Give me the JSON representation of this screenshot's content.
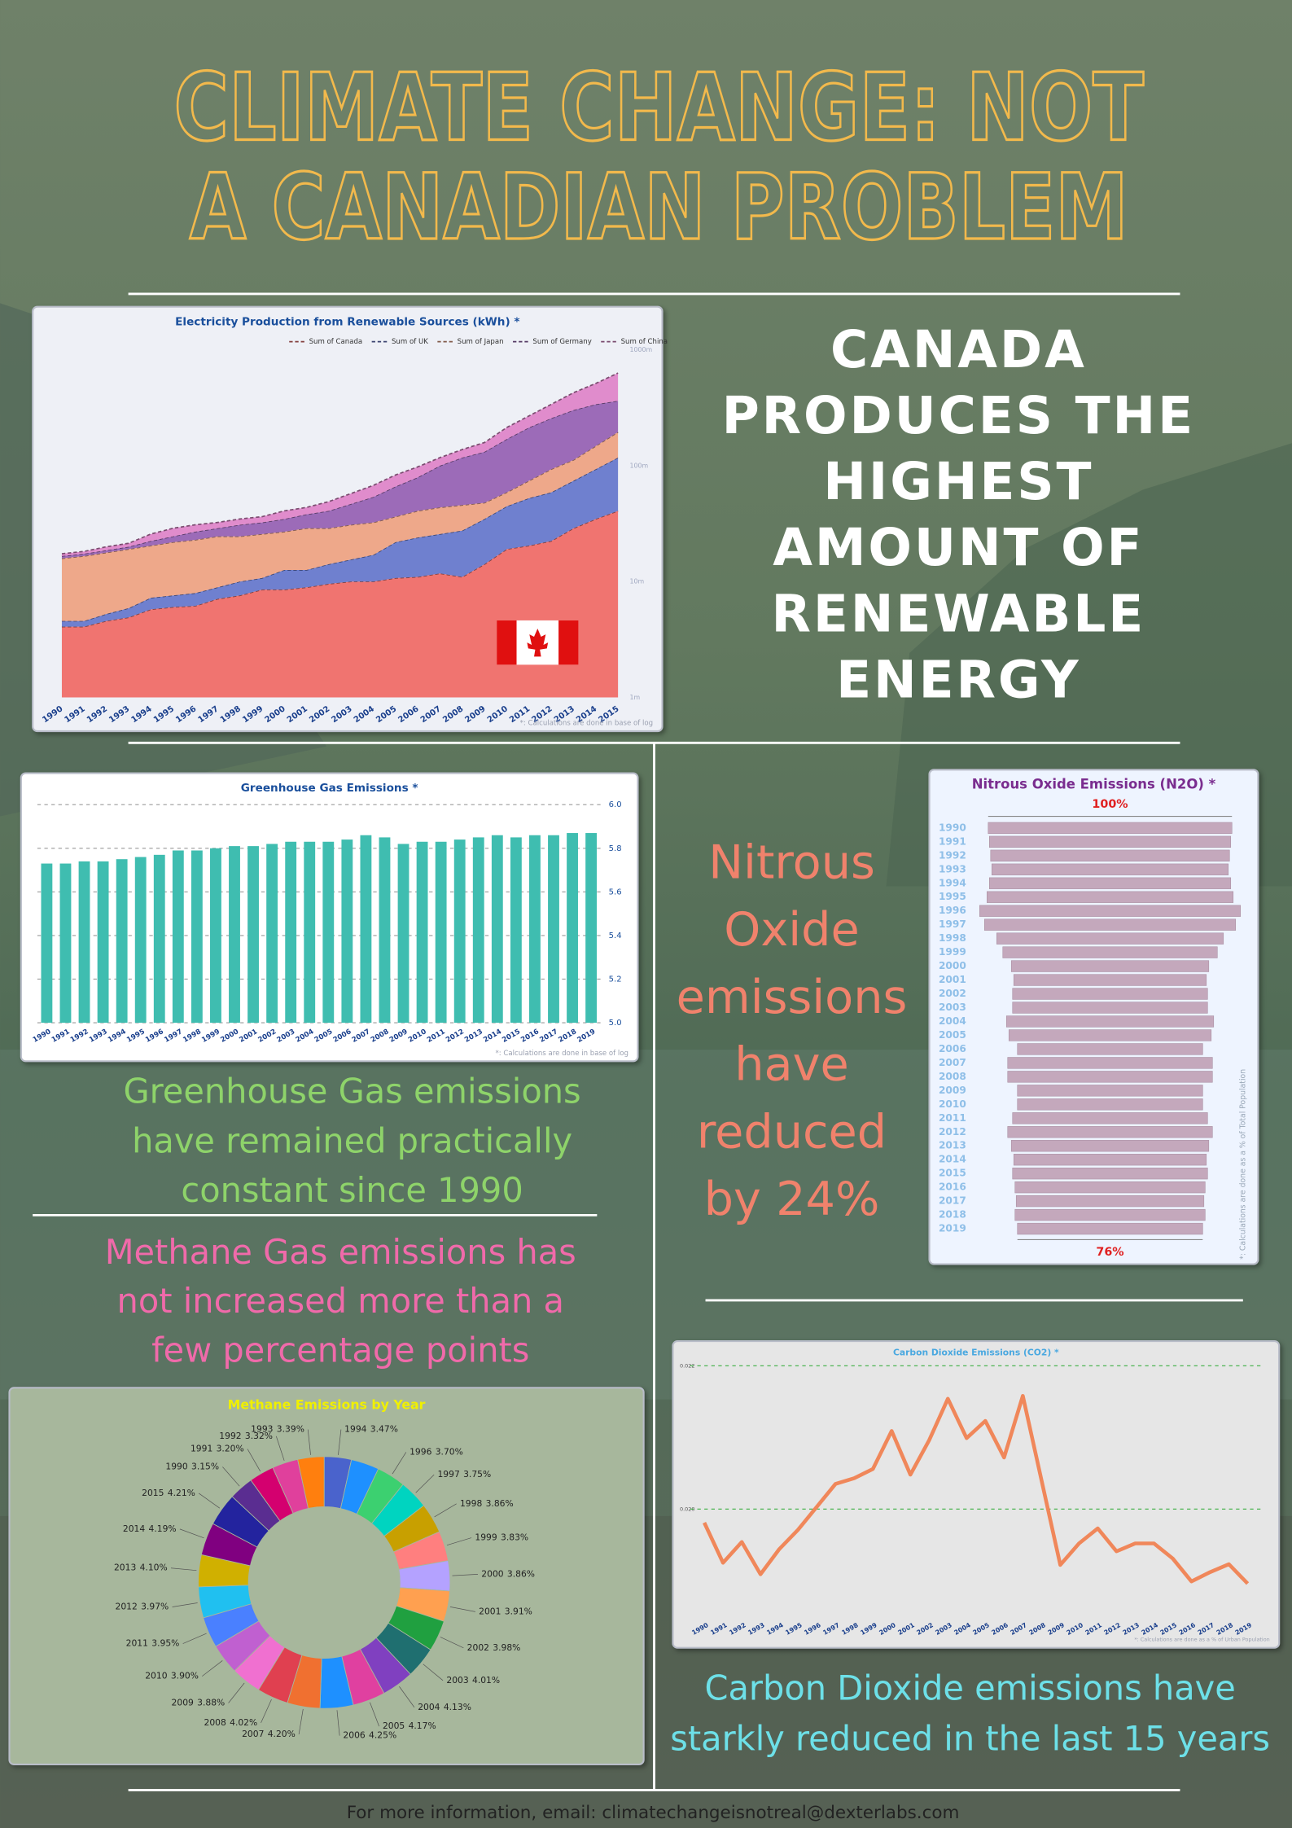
{
  "title_lines": [
    "CLIMATE CHANGE: NOT",
    "A CANADIAN PROBLEM"
  ],
  "headline_lines": [
    "CANADA",
    "PRODUCES THE",
    "HIGHEST",
    "AMOUNT OF",
    "RENEWABLE",
    "ENERGY"
  ],
  "captions": {
    "greenhouse": [
      "Greenhouse Gas emissions",
      "have remained practically",
      "constant since 1990"
    ],
    "methane": [
      "Methane Gas emissions has",
      "not increased more than  a",
      "few percentage points"
    ],
    "nitrous": [
      "Nitrous",
      "Oxide",
      "emissions",
      "have",
      "reduced",
      "by 24%"
    ],
    "co2": [
      "Carbon Dioxide emissions have",
      "starkly reduced in the last 15 years"
    ]
  },
  "footer": "For more information, email: climatechangeisnotreal@dexterlabs.com",
  "chart_data": [
    {
      "type": "area",
      "stacked": true,
      "title": "Electricity Production from Renewable Sources (kWh) *",
      "x": [
        1990,
        1991,
        1992,
        1993,
        1994,
        1995,
        1996,
        1997,
        1998,
        1999,
        2000,
        2001,
        2002,
        2003,
        2004,
        2005,
        2006,
        2007,
        2008,
        2009,
        2010,
        2011,
        2012,
        2013,
        2014,
        2015
      ],
      "series": [
        {
          "name": "Sum of Canada",
          "color": "#f07470",
          "values": [
            0.61,
            0.61,
            0.66,
            0.69,
            0.76,
            0.78,
            0.79,
            0.85,
            0.88,
            0.93,
            0.93,
            0.95,
            0.98,
            1.0,
            1.0,
            1.03,
            1.04,
            1.07,
            1.04,
            1.15,
            1.28,
            1.31,
            1.35,
            1.46,
            1.54,
            1.61
          ]
        },
        {
          "name": "Sum of UK",
          "color": "#6f80cf",
          "values": [
            0.05,
            0.05,
            0.06,
            0.08,
            0.1,
            0.1,
            0.11,
            0.1,
            0.12,
            0.1,
            0.17,
            0.15,
            0.17,
            0.19,
            0.23,
            0.31,
            0.34,
            0.34,
            0.4,
            0.39,
            0.37,
            0.41,
            0.42,
            0.41,
            0.43,
            0.46
          ]
        },
        {
          "name": "Sum of Japan",
          "color": "#eea88a",
          "values": [
            0.54,
            0.56,
            0.53,
            0.51,
            0.45,
            0.46,
            0.46,
            0.44,
            0.39,
            0.38,
            0.33,
            0.36,
            0.31,
            0.3,
            0.28,
            0.22,
            0.23,
            0.23,
            0.22,
            0.14,
            0.12,
            0.15,
            0.2,
            0.18,
            0.2,
            0.22
          ]
        },
        {
          "name": "Sum of Germany",
          "color": "#9c6bb8",
          "values": [
            0.02,
            0.02,
            0.02,
            0.02,
            0.04,
            0.05,
            0.07,
            0.07,
            0.1,
            0.1,
            0.11,
            0.12,
            0.15,
            0.18,
            0.22,
            0.26,
            0.29,
            0.36,
            0.41,
            0.44,
            0.46,
            0.46,
            0.44,
            0.43,
            0.36,
            0.27
          ]
        },
        {
          "name": "Sum of China",
          "color": "#e08ccc",
          "values": [
            0.02,
            0.02,
            0.03,
            0.03,
            0.06,
            0.07,
            0.06,
            0.05,
            0.05,
            0.05,
            0.07,
            0.06,
            0.08,
            0.09,
            0.1,
            0.1,
            0.09,
            0.07,
            0.07,
            0.08,
            0.1,
            0.1,
            0.12,
            0.15,
            0.18,
            0.24
          ]
        }
      ],
      "ylim": [
        0,
        3
      ],
      "yticks": [
        {
          "value": 0,
          "label": "1m"
        },
        {
          "value": 1,
          "label": "10m"
        },
        {
          "value": 2,
          "label": "100m"
        },
        {
          "value": 3,
          "label": "1000m"
        }
      ],
      "grid": false,
      "legend": "top-right",
      "note": "*: Calculations are done in base of log"
    },
    {
      "type": "bar",
      "title": "Greenhouse Gas Emissions *",
      "categories": [
        1990,
        1991,
        1992,
        1993,
        1994,
        1995,
        1996,
        1997,
        1998,
        1999,
        2000,
        2001,
        2002,
        2003,
        2004,
        2005,
        2006,
        2007,
        2008,
        2009,
        2010,
        2011,
        2012,
        2013,
        2014,
        2015,
        2016,
        2017,
        2018,
        2019
      ],
      "values": [
        5.73,
        5.73,
        5.74,
        5.74,
        5.75,
        5.76,
        5.77,
        5.79,
        5.79,
        5.8,
        5.81,
        5.81,
        5.82,
        5.83,
        5.83,
        5.83,
        5.84,
        5.86,
        5.85,
        5.82,
        5.83,
        5.83,
        5.84,
        5.85,
        5.86,
        5.85,
        5.86,
        5.86,
        5.87,
        5.87
      ],
      "color": "#3fbdb0",
      "ylim": [
        5,
        6
      ],
      "yticks": [
        {
          "value": 5,
          "label": "5.0"
        },
        5.2,
        5.4,
        5.6,
        5.8,
        {
          "value": 6,
          "label": "6.0"
        }
      ],
      "grid": true,
      "grid_color": "#9a9a9a",
      "note": "*: Calculations are done in base of log"
    },
    {
      "type": "bar",
      "orientation": "horizontal",
      "centered": true,
      "title": "Nitrous Oxide Emissions (N2O) *",
      "categories": [
        1990,
        1991,
        1992,
        1993,
        1994,
        1995,
        1996,
        1997,
        1998,
        1999,
        2000,
        2001,
        2002,
        2003,
        2004,
        2005,
        2006,
        2007,
        2008,
        2009,
        2010,
        2011,
        2012,
        2013,
        2014,
        2015,
        2016,
        2017,
        2018,
        2019
      ],
      "values": [
        100,
        99,
        98,
        97,
        99,
        101,
        107,
        103,
        93,
        88,
        81,
        79,
        80,
        80,
        85,
        83,
        76,
        84,
        84,
        76,
        76,
        80,
        84,
        81,
        79,
        80,
        78,
        77,
        78,
        76
      ],
      "color": "#c4a8bc",
      "xlim": [
        0,
        110
      ],
      "annotations": [
        "100%",
        "76%"
      ],
      "note": "*: Calculations are done as a % of  Total Population"
    },
    {
      "type": "pie",
      "donut": true,
      "title": "Methane Emissions by Year",
      "categories": [
        1990,
        1991,
        1992,
        1993,
        1994,
        null,
        1996,
        1997,
        1998,
        1999,
        2000,
        2001,
        2002,
        2003,
        2004,
        2005,
        2006,
        2007,
        2008,
        2009,
        2010,
        2011,
        2012,
        2013,
        2014,
        2015
      ],
      "values": [
        3.15,
        3.2,
        3.32,
        3.39,
        3.47,
        3.6,
        3.7,
        3.75,
        3.86,
        3.83,
        3.86,
        3.91,
        3.98,
        4.01,
        4.13,
        4.17,
        4.25,
        4.2,
        4.02,
        3.88,
        3.9,
        3.95,
        3.97,
        4.1,
        4.19,
        4.21
      ],
      "value_labels": [
        "3.15%",
        "3.20%",
        "3.32%",
        "3.39%",
        "3.47%",
        null,
        "3.70%",
        "3.75%",
        "3.86%",
        "3.83%",
        "3.86%",
        "3.91%",
        "3.98%",
        "4.01%",
        "4.13%",
        "4.17%",
        "4.25%",
        "4.20%",
        "4.02%",
        "3.88%",
        "3.90%",
        "3.95%",
        "3.97%",
        "4.10%",
        "4.19%",
        "4.21%"
      ],
      "colors": [
        "#5a2d91",
        "#d4006f",
        "#e0409c",
        "#ff7f0e",
        "#4a63cc",
        "#1e90ff",
        "#3cd070",
        "#00d4c0",
        "#c8a000",
        "#ff7f7f",
        "#b4a2ff",
        "#ffa050",
        "#20a040",
        "#1f6f70",
        "#8040c0",
        "#e040a0",
        "#1e90ff",
        "#f07030",
        "#e04050",
        "#f070d0",
        "#c060d0",
        "#4a80ff",
        "#20c0f0",
        "#d0b000",
        "#800080",
        "#23239e"
      ]
    },
    {
      "type": "line",
      "title": "Carbon Dioxide Emissions (CO2) *",
      "x": [
        1990,
        1991,
        1992,
        1993,
        1994,
        1995,
        1996,
        1997,
        1998,
        1999,
        2000,
        2001,
        2002,
        2003,
        2004,
        2005,
        2006,
        2007,
        2008,
        2009,
        2010,
        2011,
        2012,
        2013,
        2014,
        2015,
        2016,
        2017,
        2018,
        2019
      ],
      "values": [
        0.01981,
        0.01925,
        0.01954,
        0.01909,
        0.01944,
        0.01971,
        0.02003,
        0.02035,
        0.02043,
        0.02056,
        0.02109,
        0.02048,
        0.02096,
        0.02154,
        0.02099,
        0.02123,
        0.02072,
        0.02158,
        0.0204,
        0.01922,
        0.01952,
        0.01973,
        0.01941,
        0.01952,
        0.01952,
        0.01931,
        0.01899,
        0.01912,
        0.01923,
        0.01896
      ],
      "color": "#f0875a",
      "ylim": [
        0.0186,
        0.0221
      ],
      "yticks": [
        {
          "value": 0.02,
          "label": "0.020"
        },
        0.022
      ],
      "grid": true,
      "grid_color": "#3cb043",
      "note": "*: Calculations are done as a % of Urban Population"
    }
  ]
}
